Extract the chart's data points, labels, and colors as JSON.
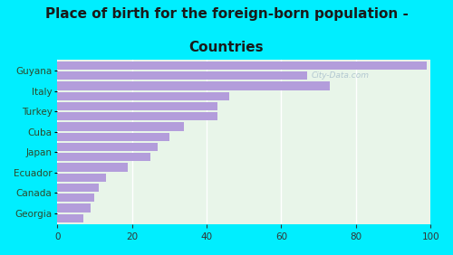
{
  "title_line1": "Place of birth for the foreign-born population -",
  "title_line2": "Countries",
  "categories": [
    "Guyana",
    "Italy",
    "Turkey",
    "Cuba",
    "Japan",
    "Ecuador",
    "Canada",
    "Georgia"
  ],
  "values1": [
    99,
    73,
    43,
    34,
    27,
    19,
    11,
    9
  ],
  "values2": [
    67,
    46,
    43,
    30,
    25,
    13,
    10,
    7
  ],
  "bar_color": "#b39ddb",
  "bg_outer": "#00eeff",
  "bg_inner_left": "#d4edda",
  "bg_inner_right": "#f0faf0",
  "title_fontsize": 11,
  "tick_fontsize": 7.5,
  "xlim": [
    0,
    100
  ],
  "xticks": [
    0,
    20,
    40,
    60,
    80,
    100
  ],
  "watermark": "City-Data.com"
}
